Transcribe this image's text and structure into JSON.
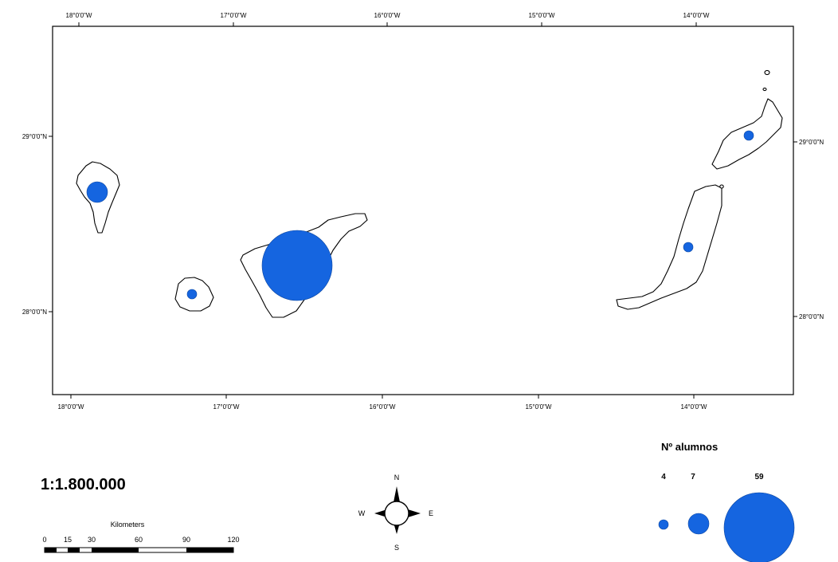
{
  "map": {
    "scale": "1:1.800.000",
    "top_longitude_labels": [
      "18°0'0\"W",
      "17°0'0\"W",
      "16°0'0\"W",
      "15°0'0\"W",
      "14°0'0\"W"
    ],
    "bottom_longitude_labels": [
      "18°0'0\"W",
      "17°0'0\"W",
      "16°0'0\"W",
      "15°0'0\"W",
      "14°0'0\"W"
    ],
    "left_latitude_labels": [
      "29°0'0\"N",
      "28°0'0\"N"
    ],
    "right_latitude_labels": [
      "29°0'0\"N",
      "28°0'0\"N"
    ],
    "symbol_color": "#1565e0"
  },
  "symbols": [
    {
      "island_shape": "west-island",
      "value": 7
    },
    {
      "island_shape": "small-southwest-island",
      "value": 4
    },
    {
      "island_shape": "central-large-island",
      "value": 59
    },
    {
      "island_shape": "northeast-island",
      "value": 4
    },
    {
      "island_shape": "long-east-island",
      "value": 4
    }
  ],
  "legend": {
    "title": "Nº alumnos",
    "values": [
      "4",
      "7",
      "59"
    ]
  },
  "scale_bar": {
    "unit": "Kilometers",
    "labels": [
      "0",
      "15",
      "30",
      "60",
      "90",
      "120"
    ]
  },
  "compass": {
    "north": "N",
    "south": "S",
    "east": "E",
    "west": "W"
  }
}
